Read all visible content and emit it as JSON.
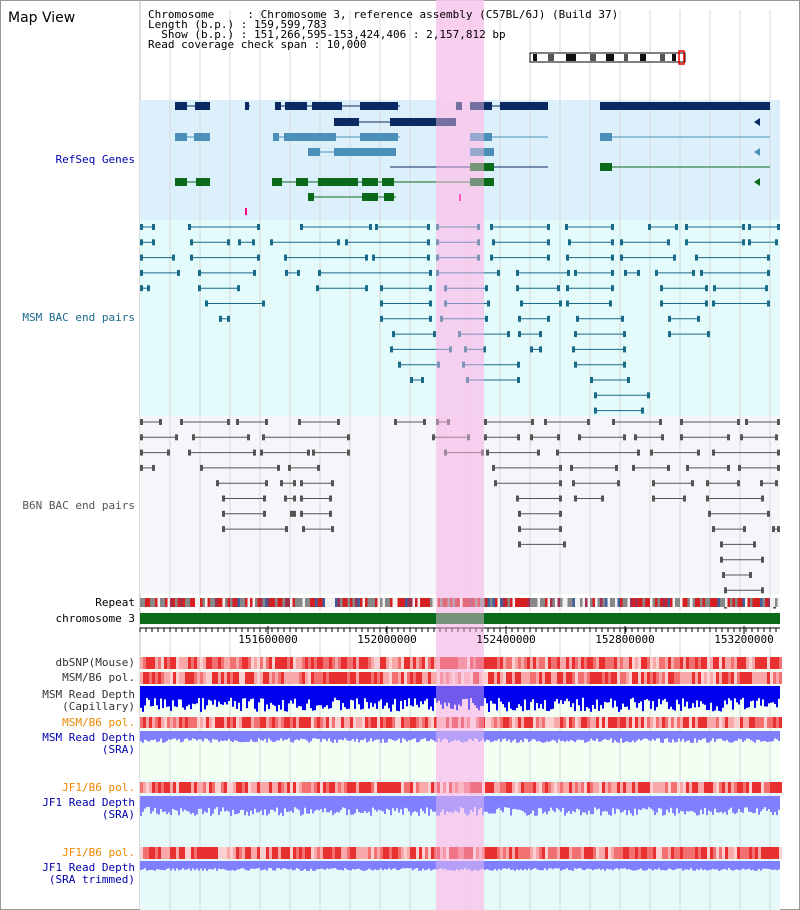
{
  "view_title": "Map View",
  "header": {
    "chromosome_line": "Chromosome     : Chromosome 3, reference assembly (C57BL/6J) (Build 37)",
    "length_line": "Length (b.p.) : 159,599,783",
    "show_line": "  Show (b.p.) : 151,266,595-153,424,406 : 2,157,812 bp",
    "coverage_line": "Read coverage check span : 10,000"
  },
  "tracks": {
    "refseq": "RefSeq Genes",
    "msm_bac": "MSM BAC end pairs",
    "b6n_bac": "B6N BAC end pairs",
    "repeat": "Repeat",
    "chromosome": "chromosome 3",
    "dbsnp": "dbSNP(Mouse)",
    "msm_b6_pol": "MSM/B6 pol.",
    "msm_read_depth_cap_1": "MSM Read Depth",
    "msm_read_depth_cap_2": "(Capillary)",
    "msm_b6_pol_sra": "MSM/B6 pol.",
    "msm_read_depth_sra_1": "MSM Read Depth",
    "msm_read_depth_sra_2": "(SRA)",
    "jf1_b6_pol": "JF1/B6 pol.",
    "jf1_read_depth_1": "JF1 Read Depth",
    "jf1_read_depth_2": "(SRA)",
    "jf1_b6_pol_trim": "JF1/B6 pol.",
    "jf1_read_depth_trim_1": "JF1 Read Depth",
    "jf1_read_depth_trim_2": "(SRA trimmed)"
  },
  "axis": {
    "ticks": [
      "151600000",
      "152000000",
      "152400000",
      "152800000",
      "153200000"
    ]
  },
  "colors": {
    "refseq_dark": "#0b2a63",
    "refseq_mid": "#4a90b8",
    "refseq_green": "#0b6a1a",
    "msm_teal": "#1a6a8a",
    "b6n_gray": "#555555",
    "highlight": "#f8c8ee",
    "depth_blue": "#0000ee",
    "depth_light": "#8080ff",
    "pol_red": "#ee2222",
    "orange_label": "#ee8800",
    "blue_label": "#0000aa"
  }
}
